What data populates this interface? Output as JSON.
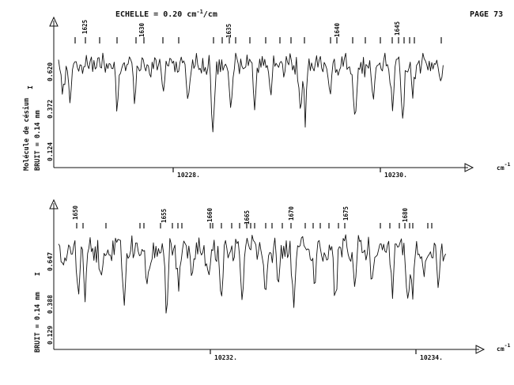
{
  "header": {
    "scale_label": "ECHELLE = 0.20 cm",
    "scale_sup": "-1",
    "scale_unit": "/cm",
    "page_label": "PAGE 73"
  },
  "chart_data": [
    {
      "type": "line",
      "x_unit_label": "cm",
      "x_unit_sup": "-1",
      "x_ticks": [
        "10228.",
        "10230."
      ],
      "side_labels": {
        "substance": "Molécule de césium",
        "noise": "BRUIT = 0.14 mm",
        "i_marker": "I"
      },
      "y_ticks": [
        "0.620",
        "0.372",
        "0.124"
      ],
      "line_numbers": [
        "1625",
        "1630",
        "1635",
        "1640",
        "1645"
      ]
    },
    {
      "type": "line",
      "x_unit_label": "cm",
      "x_unit_sup": "-1",
      "x_ticks": [
        "10232.",
        "10234."
      ],
      "side_labels": {
        "noise": "BRUIT = 0.14 mm",
        "i_marker": "I"
      },
      "y_ticks": [
        "0.647",
        "0.388",
        "0.129"
      ],
      "line_numbers": [
        "1650",
        "1655",
        "1660",
        "1665",
        "1670",
        "1675",
        "1680"
      ]
    }
  ]
}
